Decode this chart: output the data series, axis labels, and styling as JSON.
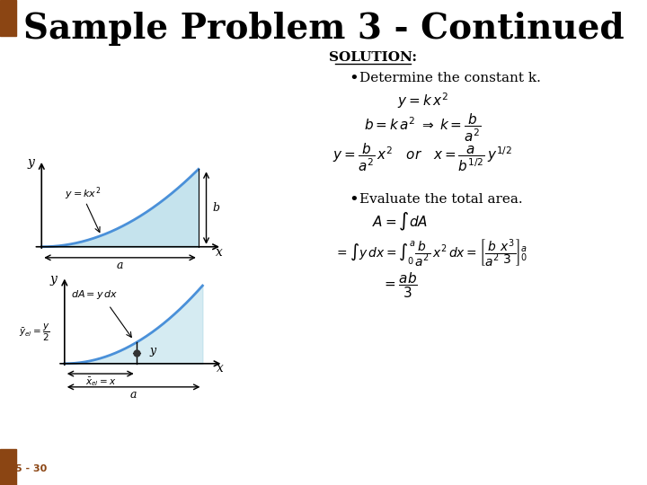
{
  "title": "Sample Problem 3 - Continued",
  "title_fontsize": 28,
  "background_color": "#ffffff",
  "solution_label": "SOLUTION:",
  "bullet1_text": "Determine the constant k.",
  "bullet2_text": "Evaluate the total area.",
  "page_label": "5 - 30",
  "corner_color": "#8B4513",
  "curve_color": "#4A90D9",
  "fill_color": "#ADD8E6",
  "dot_color": "#333333"
}
